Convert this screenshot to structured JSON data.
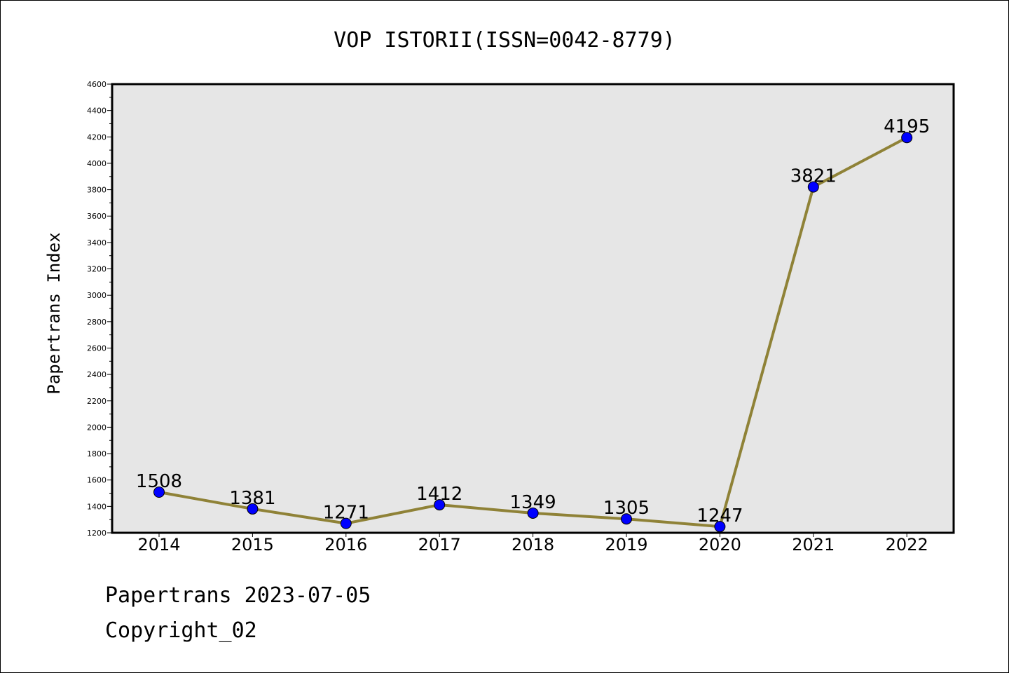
{
  "colors": {
    "plot_background": "#e6e6e6",
    "line": "#8f8237",
    "marker": "#0000ff",
    "axis": "#000000"
  },
  "chart_data": {
    "type": "line",
    "title": "VOP ISTORII(ISSN=0042-8779)",
    "xlabel": "",
    "ylabel": "Papertrans Index",
    "categories": [
      "2014",
      "2015",
      "2016",
      "2017",
      "2018",
      "2019",
      "2020",
      "2021",
      "2022"
    ],
    "series": [
      {
        "values": [
          1508,
          1381,
          1271,
          1412,
          1349,
          1305,
          1247,
          3821,
          4195
        ]
      }
    ],
    "data_labels": [
      "1508",
      "1381",
      "1271",
      "1412",
      "1349",
      "1305",
      "1247",
      "3821",
      "4195"
    ],
    "ylim": [
      1200,
      4600
    ],
    "yticks": [
      "1200",
      "1400",
      "1600",
      "1800",
      "2000",
      "2200",
      "2400",
      "2600",
      "2800",
      "3000",
      "3200",
      "3400",
      "3600",
      "3800",
      "4000",
      "4200",
      "4400",
      "4600"
    ],
    "grid": false,
    "legend": "none"
  },
  "footer": {
    "date_line": "Papertrans 2023-07-05",
    "copyright_line": "Copyright_02"
  }
}
